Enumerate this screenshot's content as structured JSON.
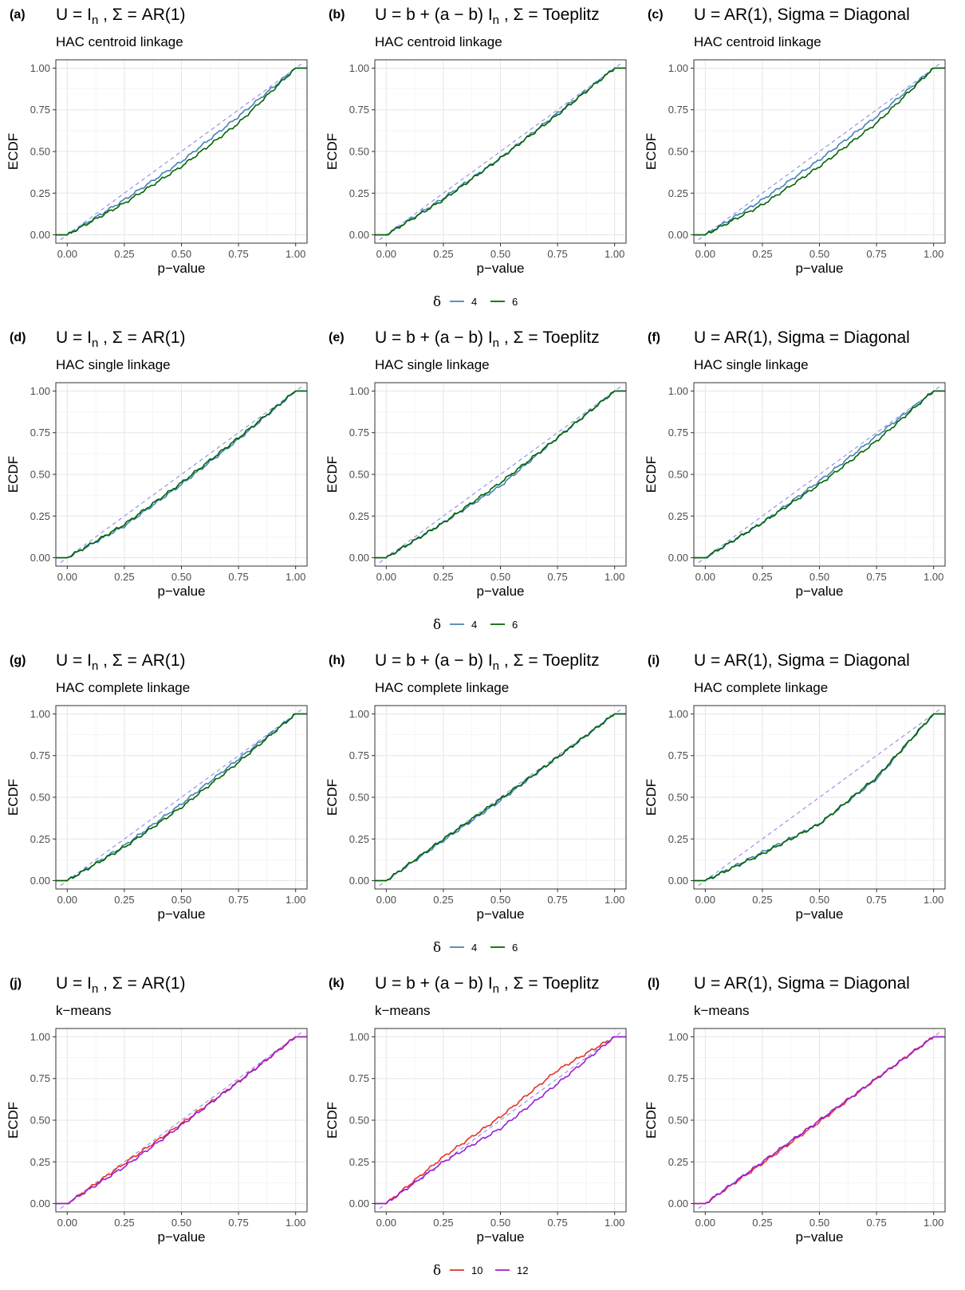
{
  "rows": [
    {
      "label_letters": [
        "(a)",
        "(b)",
        "(c)"
      ],
      "method": "HAC centroid linkage",
      "legend": {
        "title": "δ",
        "items": [
          {
            "label": "4",
            "color": "#4682b4"
          },
          {
            "label": "6",
            "color": "#006400"
          }
        ]
      }
    },
    {
      "label_letters": [
        "(d)",
        "(e)",
        "(f)"
      ],
      "method": "HAC single linkage",
      "legend": {
        "title": "δ",
        "items": [
          {
            "label": "4",
            "color": "#4682b4"
          },
          {
            "label": "6",
            "color": "#006400"
          }
        ]
      }
    },
    {
      "label_letters": [
        "(g)",
        "(h)",
        "(i)"
      ],
      "method": "HAC complete linkage",
      "legend": {
        "title": "δ",
        "items": [
          {
            "label": "4",
            "color": "#4682b4"
          },
          {
            "label": "6",
            "color": "#006400"
          }
        ]
      }
    },
    {
      "label_letters": [
        "(j)",
        "(k)",
        "(l)"
      ],
      "method": "k−means",
      "legend": {
        "title": "δ",
        "items": [
          {
            "label": "10",
            "color": "#e8312a"
          },
          {
            "label": "12",
            "color": "#9a1fd6"
          }
        ]
      }
    }
  ],
  "columns": [
    {
      "title": [
        {
          "t": "U = I"
        },
        {
          "t": "n",
          "sub": true
        },
        {
          "t": " , Σ = AR(1)"
        }
      ]
    },
    {
      "title": [
        {
          "t": "U = b + (a − b) I"
        },
        {
          "t": "n",
          "sub": true
        },
        {
          "t": " , Σ = Toeplitz"
        }
      ]
    },
    {
      "title": [
        {
          "t": "U = AR(1), Sigma = Diagonal"
        }
      ]
    }
  ],
  "axes": {
    "xlabel": "p−value",
    "ylabel": "ECDF",
    "xticks": [
      "0.00",
      "0.25",
      "0.50",
      "0.75",
      "1.00"
    ],
    "yticks": [
      "0.00",
      "0.25",
      "0.50",
      "0.75",
      "1.00"
    ],
    "xlim": [
      -0.05,
      1.05
    ],
    "ylim": [
      -0.05,
      1.05
    ]
  },
  "reference_line": {
    "style": "dashed",
    "color": "#8c8ce6",
    "points": [
      [
        0,
        0
      ],
      [
        1,
        1
      ]
    ]
  },
  "chart_data": [
    {
      "type": "line",
      "panel": "(a)",
      "x": [
        0,
        0.25,
        0.5,
        0.75,
        1
      ],
      "series": [
        {
          "name": "4",
          "color": "#4682b4",
          "values": [
            0,
            0.21,
            0.44,
            0.71,
            1
          ]
        },
        {
          "name": "6",
          "color": "#006400",
          "values": [
            0,
            0.19,
            0.41,
            0.67,
            1
          ]
        }
      ]
    },
    {
      "type": "line",
      "panel": "(b)",
      "x": [
        0,
        0.25,
        0.5,
        0.75,
        1
      ],
      "series": [
        {
          "name": "4",
          "color": "#4682b4",
          "values": [
            0,
            0.22,
            0.46,
            0.73,
            1
          ]
        },
        {
          "name": "6",
          "color": "#006400",
          "values": [
            0,
            0.21,
            0.46,
            0.72,
            1
          ]
        }
      ]
    },
    {
      "type": "line",
      "panel": "(c)",
      "x": [
        0,
        0.25,
        0.5,
        0.75,
        1
      ],
      "series": [
        {
          "name": "4",
          "color": "#4682b4",
          "values": [
            0,
            0.21,
            0.45,
            0.71,
            1
          ]
        },
        {
          "name": "6",
          "color": "#006400",
          "values": [
            0,
            0.18,
            0.41,
            0.67,
            1
          ]
        }
      ]
    },
    {
      "type": "line",
      "panel": "(d)",
      "x": [
        0,
        0.25,
        0.5,
        0.75,
        1
      ],
      "series": [
        {
          "name": "4",
          "color": "#4682b4",
          "values": [
            0,
            0.19,
            0.44,
            0.71,
            1
          ]
        },
        {
          "name": "6",
          "color": "#006400",
          "values": [
            0,
            0.2,
            0.45,
            0.72,
            1
          ]
        }
      ]
    },
    {
      "type": "line",
      "panel": "(e)",
      "x": [
        0,
        0.25,
        0.5,
        0.75,
        1
      ],
      "series": [
        {
          "name": "4",
          "color": "#4682b4",
          "values": [
            0,
            0.21,
            0.43,
            0.72,
            1
          ]
        },
        {
          "name": "6",
          "color": "#006400",
          "values": [
            0,
            0.21,
            0.45,
            0.72,
            1
          ]
        }
      ]
    },
    {
      "type": "line",
      "panel": "(f)",
      "x": [
        0,
        0.25,
        0.5,
        0.75,
        1
      ],
      "series": [
        {
          "name": "4",
          "color": "#4682b4",
          "values": [
            0,
            0.21,
            0.46,
            0.73,
            1
          ]
        },
        {
          "name": "6",
          "color": "#006400",
          "values": [
            0,
            0.21,
            0.44,
            0.7,
            1
          ]
        }
      ]
    },
    {
      "type": "line",
      "panel": "(g)",
      "x": [
        0,
        0.25,
        0.5,
        0.75,
        1
      ],
      "series": [
        {
          "name": "4",
          "color": "#4682b4",
          "values": [
            0,
            0.21,
            0.46,
            0.73,
            1
          ]
        },
        {
          "name": "6",
          "color": "#006400",
          "values": [
            0,
            0.2,
            0.44,
            0.71,
            1
          ]
        }
      ]
    },
    {
      "type": "line",
      "panel": "(h)",
      "x": [
        0,
        0.25,
        0.5,
        0.75,
        1
      ],
      "series": [
        {
          "name": "4",
          "color": "#4682b4",
          "values": [
            0,
            0.24,
            0.48,
            0.74,
            1
          ]
        },
        {
          "name": "6",
          "color": "#006400",
          "values": [
            0,
            0.25,
            0.49,
            0.74,
            1
          ]
        }
      ]
    },
    {
      "type": "line",
      "panel": "(i)",
      "x": [
        0,
        0.25,
        0.5,
        0.75,
        1
      ],
      "series": [
        {
          "name": "4",
          "color": "#4682b4",
          "values": [
            0,
            0.17,
            0.34,
            0.61,
            1
          ]
        },
        {
          "name": "6",
          "color": "#006400",
          "values": [
            0,
            0.16,
            0.34,
            0.62,
            1
          ]
        }
      ]
    },
    {
      "type": "line",
      "panel": "(j)",
      "x": [
        0,
        0.25,
        0.5,
        0.75,
        1
      ],
      "series": [
        {
          "name": "10",
          "color": "#e8312a",
          "values": [
            0,
            0.24,
            0.48,
            0.73,
            1
          ]
        },
        {
          "name": "12",
          "color": "#9a1fd6",
          "values": [
            0,
            0.22,
            0.47,
            0.73,
            1
          ]
        }
      ]
    },
    {
      "type": "line",
      "panel": "(k)",
      "x": [
        0,
        0.25,
        0.5,
        0.75,
        1
      ],
      "series": [
        {
          "name": "10",
          "color": "#e8312a",
          "values": [
            0,
            0.28,
            0.52,
            0.8,
            1
          ]
        },
        {
          "name": "12",
          "color": "#9a1fd6",
          "values": [
            0,
            0.25,
            0.45,
            0.72,
            1
          ]
        }
      ]
    },
    {
      "type": "line",
      "panel": "(l)",
      "x": [
        0,
        0.25,
        0.5,
        0.75,
        1
      ],
      "series": [
        {
          "name": "10",
          "color": "#e8312a",
          "values": [
            0,
            0.24,
            0.49,
            0.75,
            1
          ]
        },
        {
          "name": "12",
          "color": "#9a1fd6",
          "values": [
            0,
            0.25,
            0.5,
            0.75,
            1
          ]
        }
      ]
    }
  ]
}
